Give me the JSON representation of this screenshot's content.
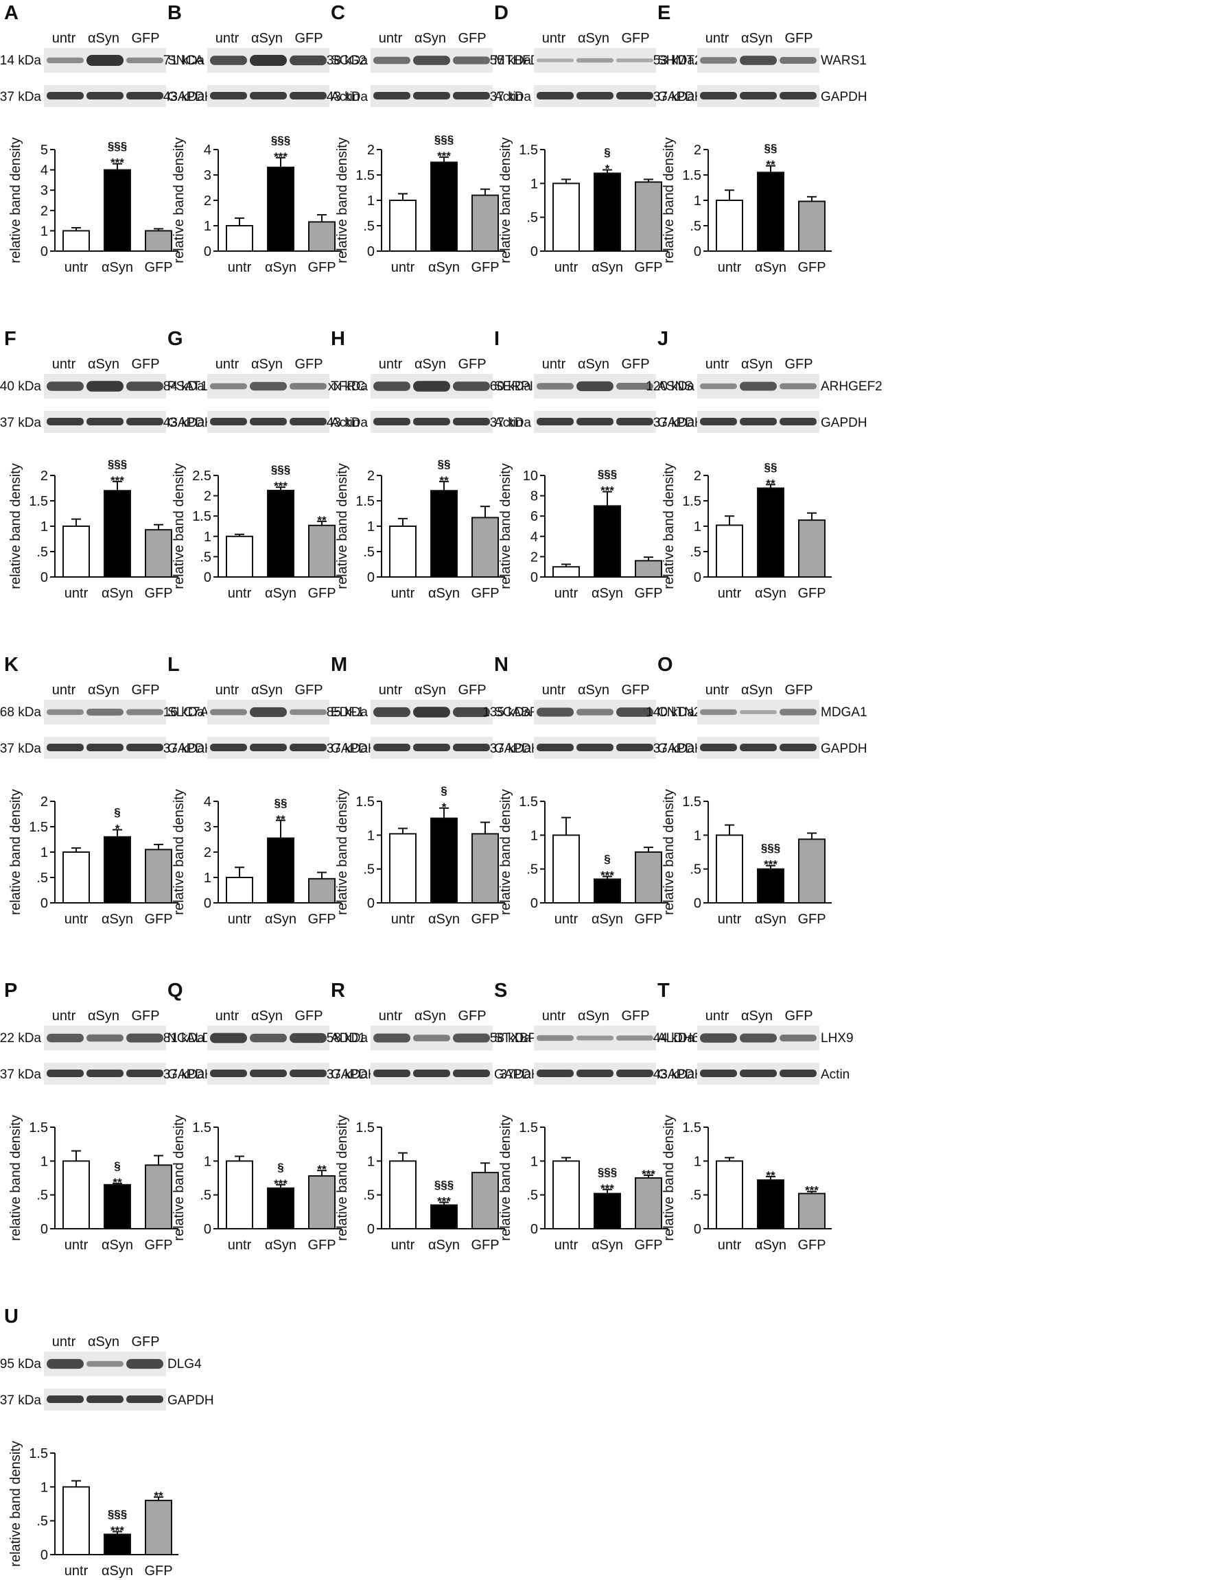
{
  "lanes": [
    "untr",
    "αSyn",
    "GFP"
  ],
  "ylabel": "relative band density",
  "colors": {
    "untr": "#ffffff",
    "αSyn": "#000000",
    "GFP": "#a6a6a6",
    "axis": "#111111",
    "blot_bg": "#e9e9e9",
    "band": "#2a2a2a"
  },
  "chart_data": [
    {
      "panel": "A",
      "type": "bar",
      "categories": [
        "untr",
        "αSyn",
        "GFP"
      ],
      "values": [
        1.0,
        4.0,
        1.0
      ],
      "errors": [
        0.15,
        0.3,
        0.1
      ],
      "ylim": [
        0,
        5
      ],
      "ticks": [
        {
          "v": 0,
          "t": "0"
        },
        {
          "v": 1,
          "t": "1"
        },
        {
          "v": 2,
          "t": "2"
        },
        {
          "v": 3,
          "t": "3"
        },
        {
          "v": 4,
          "t": "4"
        },
        {
          "v": 5,
          "t": "5"
        }
      ],
      "sig": [
        "",
        "§§§|***",
        ""
      ],
      "blot": {
        "target": "SNCA",
        "target_mw": "14 kDa",
        "loading": "GAPDH",
        "loading_mw": "37 kDa",
        "band": [
          0.35,
          1.0,
          0.35
        ]
      }
    },
    {
      "panel": "B",
      "type": "bar",
      "categories": [
        "untr",
        "αSyn",
        "GFP"
      ],
      "values": [
        1.0,
        3.3,
        1.15
      ],
      "errors": [
        0.3,
        0.38,
        0.28
      ],
      "ylim": [
        0,
        4
      ],
      "ticks": [
        {
          "v": 0,
          "t": "0"
        },
        {
          "v": 1,
          "t": "1"
        },
        {
          "v": 2,
          "t": "2"
        },
        {
          "v": 3,
          "t": "3"
        },
        {
          "v": 4,
          "t": "4"
        }
      ],
      "sig": [
        "",
        "§§§|***",
        ""
      ],
      "blot": {
        "target": "SCG2",
        "target_mw": "71 kDa",
        "loading": "Actin",
        "loading_mw": "43 kDa",
        "band": [
          0.8,
          1.0,
          0.85
        ]
      }
    },
    {
      "panel": "C",
      "type": "bar",
      "categories": [
        "untr",
        "αSyn",
        "GFP"
      ],
      "values": [
        1.0,
        1.75,
        1.1
      ],
      "errors": [
        0.13,
        0.1,
        0.12
      ],
      "ylim": [
        0,
        2
      ],
      "ticks": [
        {
          "v": 0,
          "t": "0"
        },
        {
          "v": 0.5,
          "t": ".5"
        },
        {
          "v": 1,
          "t": "1"
        },
        {
          "v": 1.5,
          "t": "1.5"
        },
        {
          "v": 2,
          "t": "2"
        }
      ],
      "sig": [
        "",
        "§§§|***",
        ""
      ],
      "blot": {
        "target": "MTHFD2",
        "target_mw": "38 kDa",
        "loading": "Actin",
        "loading_mw": "43 kDa",
        "band": [
          0.55,
          0.8,
          0.6
        ]
      }
    },
    {
      "panel": "D",
      "type": "bar",
      "categories": [
        "untr",
        "αSyn",
        "GFP"
      ],
      "values": [
        1.0,
        1.15,
        1.02
      ],
      "errors": [
        0.06,
        0.05,
        0.04
      ],
      "ylim": [
        0,
        1.5
      ],
      "ticks": [
        {
          "v": 0,
          "t": "0"
        },
        {
          "v": 0.5,
          "t": ".5"
        },
        {
          "v": 1,
          "t": "1"
        },
        {
          "v": 1.5,
          "t": "1.5"
        }
      ],
      "sig": [
        "",
        "§|*",
        ""
      ],
      "blot": {
        "target": "SHMT2",
        "target_mw": "55 kDa",
        "loading": "GAPDH",
        "loading_mw": "37 kDa",
        "band": [
          0.1,
          0.2,
          0.12
        ]
      }
    },
    {
      "panel": "E",
      "type": "bar",
      "categories": [
        "untr",
        "αSyn",
        "GFP"
      ],
      "values": [
        1.0,
        1.55,
        0.98
      ],
      "errors": [
        0.2,
        0.13,
        0.09
      ],
      "ylim": [
        0,
        2
      ],
      "ticks": [
        {
          "v": 0,
          "t": "0"
        },
        {
          "v": 0.5,
          "t": ".5"
        },
        {
          "v": 1,
          "t": "1"
        },
        {
          "v": 1.5,
          "t": "1.5"
        },
        {
          "v": 2,
          "t": "2"
        }
      ],
      "sig": [
        "",
        "§§|**",
        ""
      ],
      "blot": {
        "target": "WARS1",
        "target_mw": "53 kDa",
        "loading": "GAPDH",
        "loading_mw": "37 kDa",
        "band": [
          0.45,
          0.8,
          0.5
        ]
      }
    },
    {
      "panel": "F",
      "type": "bar",
      "categories": [
        "untr",
        "αSyn",
        "GFP"
      ],
      "values": [
        1.0,
        1.7,
        0.93
      ],
      "errors": [
        0.14,
        0.18,
        0.1
      ],
      "ylim": [
        0,
        2
      ],
      "ticks": [
        {
          "v": 0,
          "t": "0"
        },
        {
          "v": 0.5,
          "t": ".5"
        },
        {
          "v": 1,
          "t": "1"
        },
        {
          "v": 1.5,
          "t": "1.5"
        },
        {
          "v": 2,
          "t": "2"
        }
      ],
      "sig": [
        "",
        "§§§|***",
        ""
      ],
      "blot": {
        "target": "PSAT1",
        "target_mw": "40 kDa",
        "loading": "GAPDH",
        "loading_mw": "37 kDa",
        "band": [
          0.8,
          0.95,
          0.8
        ]
      }
    },
    {
      "panel": "G",
      "type": "bar",
      "categories": [
        "untr",
        "αSyn",
        "GFP"
      ],
      "values": [
        1.0,
        2.13,
        1.27
      ],
      "errors": [
        0.05,
        0.08,
        0.1
      ],
      "ylim": [
        0,
        2.5
      ],
      "ticks": [
        {
          "v": 0,
          "t": "0"
        },
        {
          "v": 0.5,
          "t": ".5"
        },
        {
          "v": 1,
          "t": "1"
        },
        {
          "v": 1.5,
          "t": "1.5"
        },
        {
          "v": 2,
          "t": "2"
        },
        {
          "v": 2.5,
          "t": "2.5"
        }
      ],
      "sig": [
        "",
        "§§§|***",
        "**"
      ],
      "blot": {
        "target": "TFRC",
        "target_mw": "84 kDa",
        "loading": "Actin",
        "loading_mw": "43 kDa",
        "band": [
          0.4,
          0.7,
          0.45
        ]
      }
    },
    {
      "panel": "H",
      "type": "bar",
      "categories": [
        "untr",
        "αSyn",
        "GFP"
      ],
      "values": [
        1.0,
        1.7,
        1.17
      ],
      "errors": [
        0.15,
        0.18,
        0.22
      ],
      "ylim": [
        0,
        2
      ],
      "ticks": [
        {
          "v": 0,
          "t": "0"
        },
        {
          "v": 0.5,
          "t": ".5"
        },
        {
          "v": 1,
          "t": "1"
        },
        {
          "v": 1.5,
          "t": "1.5"
        },
        {
          "v": 2,
          "t": "2"
        }
      ],
      "sig": [
        "",
        "§§|**",
        ""
      ],
      "blot": {
        "target": "SERPINB6",
        "target_mw": "xx kDa",
        "loading": "Actin",
        "loading_mw": "43 kDa",
        "band": [
          0.8,
          0.95,
          0.8
        ]
      }
    },
    {
      "panel": "I",
      "type": "bar",
      "categories": [
        "untr",
        "αSyn",
        "GFP"
      ],
      "values": [
        1.0,
        7.0,
        1.6
      ],
      "errors": [
        0.25,
        1.4,
        0.35
      ],
      "ylim": [
        0,
        10
      ],
      "ticks": [
        {
          "v": 0,
          "t": "0"
        },
        {
          "v": 2,
          "t": "2"
        },
        {
          "v": 4,
          "t": "4"
        },
        {
          "v": 6,
          "t": "6"
        },
        {
          "v": 8,
          "t": "8"
        },
        {
          "v": 10,
          "t": "10"
        }
      ],
      "sig": [
        "",
        "§§§|***",
        ""
      ],
      "blot": {
        "target": "ASNS",
        "target_mw": "60 kDa",
        "loading": "GAPDH",
        "loading_mw": "37 kDa",
        "band": [
          0.45,
          0.85,
          0.5
        ]
      }
    },
    {
      "panel": "J",
      "type": "bar",
      "categories": [
        "untr",
        "αSyn",
        "GFP"
      ],
      "values": [
        1.02,
        1.75,
        1.12
      ],
      "errors": [
        0.18,
        0.07,
        0.14
      ],
      "ylim": [
        0,
        2
      ],
      "ticks": [
        {
          "v": 0,
          "t": "0"
        },
        {
          "v": 0.5,
          "t": ".5"
        },
        {
          "v": 1,
          "t": "1"
        },
        {
          "v": 1.5,
          "t": "1.5"
        },
        {
          "v": 2,
          "t": "2"
        }
      ],
      "sig": [
        "",
        "§§|**",
        ""
      ],
      "blot": {
        "target": "ARHGEF2",
        "target_mw": "120 kDa",
        "loading": "GAPDH",
        "loading_mw": "37 kDa",
        "band": [
          0.35,
          0.75,
          0.4
        ]
      }
    },
    {
      "panel": "K",
      "type": "bar",
      "categories": [
        "untr",
        "αSyn",
        "GFP"
      ],
      "values": [
        1.0,
        1.3,
        1.05
      ],
      "errors": [
        0.08,
        0.14,
        0.1
      ],
      "ylim": [
        0,
        2
      ],
      "ticks": [
        {
          "v": 0,
          "t": "0"
        },
        {
          "v": 0.5,
          "t": ".5"
        },
        {
          "v": 1,
          "t": "1"
        },
        {
          "v": 1.5,
          "t": "1.5"
        },
        {
          "v": 2,
          "t": "2"
        }
      ],
      "sig": [
        "",
        "§|*",
        ""
      ],
      "blot": {
        "target": "SLC7A1",
        "target_mw": "68 kDa",
        "loading": "GAPDH",
        "loading_mw": "37 kDa",
        "band": [
          0.35,
          0.5,
          0.4
        ]
      }
    },
    {
      "panel": "L",
      "type": "bar",
      "categories": [
        "untr",
        "αSyn",
        "GFP"
      ],
      "values": [
        1.0,
        2.55,
        0.95
      ],
      "errors": [
        0.4,
        0.7,
        0.25
      ],
      "ylim": [
        0,
        4
      ],
      "ticks": [
        {
          "v": 0,
          "t": "0"
        },
        {
          "v": 1,
          "t": "1"
        },
        {
          "v": 2,
          "t": "2"
        },
        {
          "v": 3,
          "t": "3"
        },
        {
          "v": 4,
          "t": "4"
        }
      ],
      "sig": [
        "",
        "§§|**",
        ""
      ],
      "blot": {
        "target": "EDF1",
        "target_mw": "16 kDa",
        "loading": "GAPDH",
        "loading_mw": "37 kDa",
        "band": [
          0.4,
          0.85,
          0.35
        ]
      }
    },
    {
      "panel": "M",
      "type": "bar",
      "categories": [
        "untr",
        "αSyn",
        "GFP"
      ],
      "values": [
        1.02,
        1.25,
        1.02
      ],
      "errors": [
        0.08,
        0.15,
        0.17
      ],
      "ylim": [
        0,
        1.5
      ],
      "ticks": [
        {
          "v": 0,
          "t": "0"
        },
        {
          "v": 0.5,
          "t": ".5"
        },
        {
          "v": 1,
          "t": "1"
        },
        {
          "v": 1.5,
          "t": "1.5"
        }
      ],
      "sig": [
        "",
        "§|*",
        ""
      ],
      "blot": {
        "target": "SCABR2",
        "target_mw": "85 kDa",
        "loading": "GAPDH",
        "loading_mw": "37 kDa",
        "band": [
          0.85,
          0.95,
          0.85
        ]
      }
    },
    {
      "panel": "N",
      "type": "bar",
      "categories": [
        "untr",
        "αSyn",
        "GFP"
      ],
      "values": [
        1.0,
        0.35,
        0.75
      ],
      "errors": [
        0.26,
        0.04,
        0.07
      ],
      "ylim": [
        0,
        1.5
      ],
      "ticks": [
        {
          "v": 0,
          "t": "0"
        },
        {
          "v": 0.5,
          "t": ".5"
        },
        {
          "v": 1,
          "t": "1"
        },
        {
          "v": 1.5,
          "t": "1.5"
        }
      ],
      "sig": [
        "",
        "§|***",
        ""
      ],
      "blot": {
        "target": "CNTN2",
        "target_mw": "135 kDa",
        "loading": "GAPDH",
        "loading_mw": "37 kDa",
        "band": [
          0.75,
          0.45,
          0.8
        ]
      }
    },
    {
      "panel": "O",
      "type": "bar",
      "categories": [
        "untr",
        "αSyn",
        "GFP"
      ],
      "values": [
        1.0,
        0.5,
        0.94
      ],
      "errors": [
        0.15,
        0.05,
        0.09
      ],
      "ylim": [
        0,
        1.5
      ],
      "ticks": [
        {
          "v": 0,
          "t": "0"
        },
        {
          "v": 0.5,
          "t": ".5"
        },
        {
          "v": 1,
          "t": "1"
        },
        {
          "v": 1.5,
          "t": "1.5"
        }
      ],
      "sig": [
        "",
        "§§§|***",
        ""
      ],
      "blot": {
        "target": "MDGA1",
        "target_mw": "140 kDa",
        "loading": "GAPDH",
        "loading_mw": "37 kDa",
        "band": [
          0.35,
          0.15,
          0.45
        ]
      }
    },
    {
      "panel": "P",
      "type": "bar",
      "categories": [
        "untr",
        "αSyn",
        "GFP"
      ],
      "values": [
        1.0,
        0.65,
        0.94
      ],
      "errors": [
        0.15,
        0.02,
        0.14
      ],
      "ylim": [
        0,
        1.5
      ],
      "ticks": [
        {
          "v": 0,
          "t": "0"
        },
        {
          "v": 0.5,
          "t": ".5"
        },
        {
          "v": 1,
          "t": "1"
        },
        {
          "v": 1.5,
          "t": "1.5"
        }
      ],
      "sig": [
        "",
        "§|**",
        ""
      ],
      "blot": {
        "target": "NCALD",
        "target_mw": "22 kDa",
        "loading": "GAPDH",
        "loading_mw": "37 kDa",
        "band": [
          0.7,
          0.55,
          0.75
        ]
      }
    },
    {
      "panel": "Q",
      "type": "bar",
      "categories": [
        "untr",
        "αSyn",
        "GFP"
      ],
      "values": [
        1.0,
        0.6,
        0.78
      ],
      "errors": [
        0.07,
        0.05,
        0.08
      ],
      "ylim": [
        0,
        1.5
      ],
      "ticks": [
        {
          "v": 0,
          "t": "0"
        },
        {
          "v": 0.5,
          "t": ".5"
        },
        {
          "v": 1,
          "t": "1"
        },
        {
          "v": 1.5,
          "t": "1.5"
        }
      ],
      "sig": [
        "",
        "§|***",
        "**"
      ],
      "blot": {
        "target": "ADD1",
        "target_mw": "81 kDa",
        "loading": "GAPDH",
        "loading_mw": "37 kDa",
        "band": [
          0.9,
          0.7,
          0.85
        ]
      }
    },
    {
      "panel": "R",
      "type": "bar",
      "categories": [
        "untr",
        "αSyn",
        "GFP"
      ],
      "values": [
        1.0,
        0.35,
        0.83
      ],
      "errors": [
        0.12,
        0.04,
        0.14
      ],
      "ylim": [
        0,
        1.5
      ],
      "ticks": [
        {
          "v": 0,
          "t": "0"
        },
        {
          "v": 0.5,
          "t": ".5"
        },
        {
          "v": 1,
          "t": "1"
        },
        {
          "v": 1.5,
          "t": "1.5"
        }
      ],
      "sig": [
        "",
        "§§§|***",
        ""
      ],
      "blot": {
        "target": "STXBP1",
        "target_mw": "58 kDa",
        "loading": "GAPDH",
        "loading_mw": "37 kDa",
        "band": [
          0.75,
          0.45,
          0.75
        ]
      }
    },
    {
      "panel": "S",
      "type": "bar",
      "categories": [
        "untr",
        "αSyn",
        "GFP"
      ],
      "values": [
        1.0,
        0.52,
        0.75
      ],
      "errors": [
        0.05,
        0.06,
        0.04
      ],
      "ylim": [
        0,
        1.5
      ],
      "ticks": [
        {
          "v": 0,
          "t": "0"
        },
        {
          "v": 0.5,
          "t": ".5"
        },
        {
          "v": 1,
          "t": "1"
        },
        {
          "v": 1.5,
          "t": "1.5"
        }
      ],
      "sig": [
        "",
        "§§§|***",
        "***"
      ],
      "blot": {
        "target": "ALDH6A1",
        "target_mw": "58 kDa",
        "loading": "GAPDH",
        "loading_mw": "37Da",
        "band": [
          0.35,
          0.25,
          0.3
        ]
      }
    },
    {
      "panel": "T",
      "type": "bar",
      "categories": [
        "untr",
        "αSyn",
        "GFP"
      ],
      "values": [
        1.0,
        0.72,
        0.52
      ],
      "errors": [
        0.05,
        0.05,
        0.03
      ],
      "ylim": [
        0,
        1.5
      ],
      "ticks": [
        {
          "v": 0,
          "t": "0"
        },
        {
          "v": 0.5,
          "t": ".5"
        },
        {
          "v": 1,
          "t": "1"
        },
        {
          "v": 1.5,
          "t": "1.5"
        }
      ],
      "sig": [
        "",
        "**",
        "***"
      ],
      "blot": {
        "target": "LHX9",
        "target_mw": "44 kDa",
        "loading": "Actin",
        "loading_mw": "43 kDa",
        "band": [
          0.8,
          0.75,
          0.5
        ]
      }
    },
    {
      "panel": "U",
      "type": "bar",
      "categories": [
        "untr",
        "αSyn",
        "GFP"
      ],
      "values": [
        1.0,
        0.3,
        0.8
      ],
      "errors": [
        0.09,
        0.04,
        0.05
      ],
      "ylim": [
        0,
        1.5
      ],
      "ticks": [
        {
          "v": 0,
          "t": "0"
        },
        {
          "v": 0.5,
          "t": ".5"
        },
        {
          "v": 1,
          "t": "1"
        },
        {
          "v": 1.5,
          "t": "1.5"
        }
      ],
      "sig": [
        "",
        "§§§|***",
        "**"
      ],
      "blot": {
        "target": "DLG4",
        "target_mw": "95 kDa",
        "loading": "GAPDH",
        "loading_mw": "37 kDa",
        "band": [
          0.85,
          0.35,
          0.85
        ]
      }
    }
  ]
}
